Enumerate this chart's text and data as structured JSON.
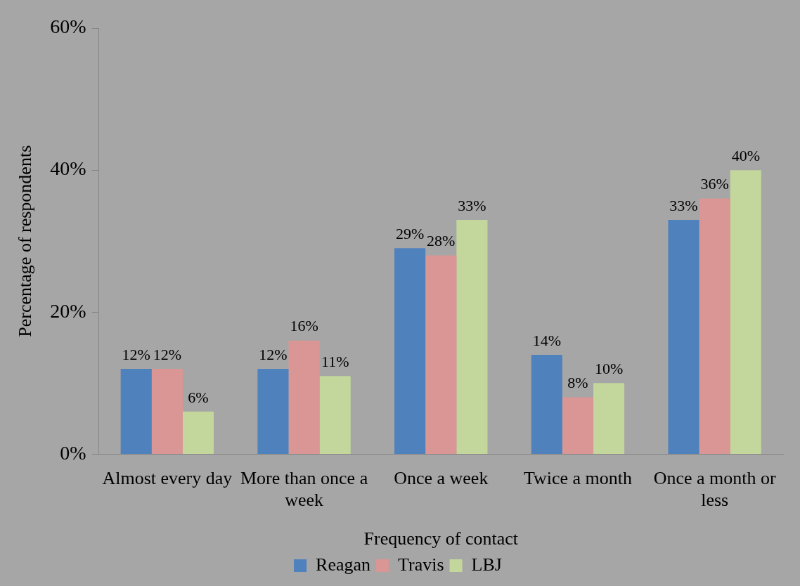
{
  "chart_data": {
    "type": "bar",
    "xlabel": "Frequency of contact",
    "ylabel": "Percentage of respondents",
    "categories": [
      "Almost every day",
      "More than once a week",
      "Once a week",
      "Twice a month",
      "Once a month or less"
    ],
    "series": [
      {
        "name": "Reagan",
        "color": "#4f81bd",
        "values": [
          12,
          12,
          29,
          14,
          33
        ],
        "value_labels": [
          "12%",
          "12%",
          "29%",
          "14%",
          "33%"
        ]
      },
      {
        "name": "Travis",
        "color": "#d99694",
        "values": [
          12,
          16,
          28,
          8,
          36
        ],
        "value_labels": [
          "12%",
          "16%",
          "28%",
          "8%",
          "36%"
        ]
      },
      {
        "name": "LBJ",
        "color": "#c3d69b",
        "values": [
          6,
          11,
          33,
          10,
          40
        ],
        "value_labels": [
          "6%",
          "11%",
          "33%",
          "10%",
          "40%"
        ]
      }
    ],
    "ylim": [
      0,
      60
    ],
    "yticks": [
      {
        "value": 0,
        "label": "0%"
      },
      {
        "value": 20,
        "label": "20%"
      },
      {
        "value": 40,
        "label": "40%"
      },
      {
        "value": 60,
        "label": "60%"
      }
    ],
    "grid": false,
    "legend": "bottom"
  }
}
